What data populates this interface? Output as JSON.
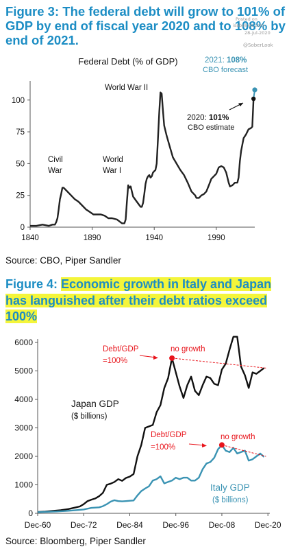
{
  "watermark": {
    "posted_on": "Posted on",
    "site": "isabelnet.com",
    "date": "28-Jul-2020",
    "handle": "@SoberLook"
  },
  "figure3": {
    "title_prefix": "Figure 3:",
    "title_rest": "The federal debt will grow to 101% of GDP by end of fiscal year 2020 and to 108% by end of 2021.",
    "source": "Source: CBO, Piper Sandler"
  },
  "figure4": {
    "title_prefix": "Figure 4:",
    "title_rest": "Economic growth in Italy and Japan has languished after their debt ratios exceed 100%",
    "source": "Source: Bloomberg, Piper Sandler"
  },
  "colors": {
    "blue": "#1c8dc4",
    "teal": "#3a93b3",
    "red": "#e8141b",
    "line": "#222222",
    "highlight": "#f4f53a"
  },
  "chart_data": [
    {
      "type": "line",
      "title": "Federal Debt (% of GDP)",
      "xlim": [
        1840,
        2021
      ],
      "ylim": [
        0,
        115
      ],
      "xticks": [
        1840,
        1890,
        1940,
        1990
      ],
      "yticks": [
        0,
        25,
        50,
        75,
        100
      ],
      "grid": false,
      "series": [
        {
          "x": [
            1840,
            1845,
            1850,
            1855,
            1858,
            1860,
            1861,
            1862,
            1863,
            1864,
            1865,
            1866,
            1867,
            1868,
            1870,
            1873,
            1876,
            1879,
            1882,
            1885,
            1888,
            1891,
            1894,
            1897,
            1900,
            1903,
            1906,
            1910,
            1914,
            1916,
            1917,
            1918,
            1919,
            1920,
            1921,
            1923,
            1926,
            1929,
            1930,
            1931,
            1932,
            1933,
            1934,
            1935,
            1936,
            1937,
            1938,
            1939,
            1940,
            1941,
            1942,
            1943,
            1944,
            1945,
            1946,
            1947,
            1948,
            1950,
            1952,
            1955,
            1958,
            1961,
            1964,
            1967,
            1970,
            1973,
            1974,
            1976,
            1978,
            1980,
            1982,
            1984,
            1986,
            1988,
            1990,
            1992,
            1994,
            1996,
            1998,
            2000,
            2001,
            2003,
            2005,
            2007,
            2008,
            2009,
            2010,
            2011,
            2012,
            2014,
            2016,
            2018,
            2019,
            2020
          ],
          "values": [
            1,
            1,
            2,
            1,
            2,
            2,
            4,
            7,
            14,
            22,
            26,
            31,
            31,
            30,
            28,
            25,
            22,
            20,
            17,
            14,
            12,
            10,
            10,
            10,
            9,
            7,
            7,
            6,
            3,
            3,
            6,
            20,
            33,
            31,
            32,
            24,
            20,
            16,
            16,
            19,
            26,
            34,
            38,
            40,
            41,
            39,
            40,
            43,
            44,
            45,
            50,
            70,
            90,
            106,
            105,
            92,
            80,
            72,
            65,
            55,
            50,
            45,
            41,
            35,
            28,
            25,
            23,
            23,
            25,
            26,
            28,
            33,
            38,
            40,
            42,
            47,
            48,
            47,
            43,
            35,
            32,
            33,
            35,
            35,
            39,
            52,
            60,
            65,
            70,
            73,
            77,
            78,
            79,
            101
          ]
        }
      ],
      "forecast": {
        "from": [
          2020,
          101
        ],
        "to": [
          2021,
          108
        ]
      },
      "annotations": {
        "ww2": "World War II",
        "civil_1": "Civil",
        "civil_2": "War",
        "ww1_1": "World",
        "ww1_2": "War I",
        "est_year": "2020:",
        "est_val": "101%",
        "est_sub": "CBO estimate",
        "fc_year": "2021:",
        "fc_val": "108%",
        "fc_sub": "CBO forecast"
      }
    },
    {
      "type": "line",
      "xlim": [
        1960,
        2020.5
      ],
      "ylim": [
        0,
        6000
      ],
      "xticks": [
        1960,
        1972,
        1984,
        1996,
        2008,
        2020
      ],
      "xtick_labels": [
        "Dec-60",
        "Dec-72",
        "Dec-84",
        "Dec-96",
        "Dec-08",
        "Dec-20"
      ],
      "yticks": [
        0,
        1000,
        2000,
        3000,
        4000,
        5000,
        6000
      ],
      "grid": false,
      "series": [
        {
          "name": "Japan GDP ($ billions)",
          "x": [
            1960,
            1962,
            1964,
            1966,
            1968,
            1970,
            1971,
            1972,
            1973,
            1974,
            1975,
            1976,
            1977,
            1978,
            1979,
            1980,
            1981,
            1982,
            1983,
            1984,
            1985,
            1986,
            1987,
            1988,
            1989,
            1990,
            1991,
            1992,
            1993,
            1994,
            1995,
            1996,
            1997,
            1998,
            1999,
            2000,
            2001,
            2002,
            2003,
            2004,
            2005,
            2006,
            2007,
            2008,
            2009,
            2010,
            2011,
            2012,
            2013,
            2014,
            2015,
            2016,
            2017,
            2018,
            2019
          ],
          "values": [
            45,
            60,
            85,
            110,
            150,
            210,
            240,
            320,
            430,
            480,
            520,
            600,
            720,
            1000,
            1040,
            1100,
            1200,
            1140,
            1240,
            1290,
            1380,
            2000,
            2400,
            3000,
            3050,
            3100,
            3550,
            3800,
            4400,
            4750,
            5450,
            4950,
            4450,
            4050,
            4500,
            4800,
            4300,
            4150,
            4500,
            4800,
            4750,
            4550,
            4500,
            5050,
            5250,
            5750,
            6200,
            6200,
            5150,
            4850,
            4400,
            4950,
            4900,
            5000,
            5100
          ]
        },
        {
          "name": "Italy GDP ($ billions)",
          "x": [
            1960,
            1965,
            1968,
            1970,
            1972,
            1974,
            1976,
            1977,
            1978,
            1979,
            1980,
            1981,
            1982,
            1983,
            1984,
            1985,
            1986,
            1987,
            1988,
            1989,
            1990,
            1991,
            1992,
            1993,
            1994,
            1995,
            1996,
            1997,
            1998,
            1999,
            2000,
            2001,
            2002,
            2003,
            2004,
            2005,
            2006,
            2007,
            2008,
            2009,
            2010,
            2011,
            2012,
            2013,
            2014,
            2015,
            2016,
            2017,
            2018,
            2019
          ],
          "values": [
            40,
            65,
            90,
            110,
            135,
            190,
            210,
            250,
            320,
            410,
            460,
            430,
            420,
            430,
            440,
            450,
            630,
            780,
            870,
            950,
            1150,
            1200,
            1300,
            1050,
            1100,
            1150,
            1250,
            1200,
            1250,
            1250,
            1150,
            1150,
            1250,
            1550,
            1750,
            1800,
            1950,
            2250,
            2400,
            2200,
            2150,
            2300,
            2100,
            2150,
            2200,
            1850,
            1900,
            2000,
            2100,
            1980
          ]
        }
      ],
      "trend_japan": {
        "from": [
          1995,
          5450
        ],
        "to": [
          2019.5,
          5100
        ]
      },
      "trend_italy": {
        "from": [
          2008,
          2400
        ],
        "to": [
          2019.5,
          2000
        ]
      },
      "annotations": {
        "japan_debt_1": "Debt/GDP",
        "japan_debt_2": "=100%",
        "japan_nogrowth": "no growth",
        "japan_label_1": "Japan GDP",
        "japan_label_2": "($ billions)",
        "italy_debt_1": "Debt/GDP",
        "italy_debt_2": "=100%",
        "italy_nogrowth": "no growth",
        "italy_label_1": "Italy GDP",
        "italy_label_2": "($ billions)"
      }
    }
  ]
}
